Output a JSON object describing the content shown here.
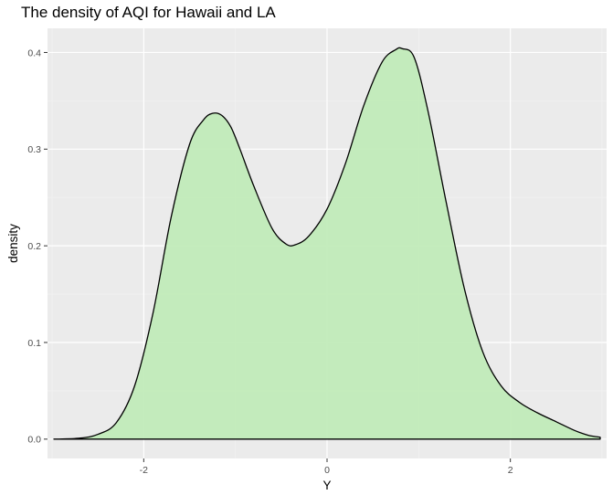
{
  "chart_data": {
    "type": "area",
    "title": "The density of AQI for Hawaii and LA",
    "xlabel": "Y",
    "ylabel": "density",
    "xlim": [
      -3.05,
      3.05
    ],
    "ylim": [
      -0.02,
      0.425
    ],
    "x_ticks": [
      -2,
      0,
      2
    ],
    "x_tick_labels": [
      "-2",
      "0",
      "2"
    ],
    "y_ticks": [
      0.0,
      0.1,
      0.2,
      0.3,
      0.4
    ],
    "y_tick_labels": [
      "0.0",
      "0.1",
      "0.2",
      "0.3",
      "0.4"
    ],
    "grid": true,
    "legend": "none",
    "colors": {
      "fill": "#c1ebb9",
      "line": "#000000",
      "panel": "#ebebeb",
      "grid_major": "#ffffff",
      "grid_minor": "#f3f3f3"
    },
    "series": [
      {
        "x": [
          -2.98,
          -2.7,
          -2.5,
          -2.3,
          -2.1,
          -1.9,
          -1.7,
          -1.5,
          -1.35,
          -1.25,
          -1.15,
          -1.05,
          -0.95,
          -0.8,
          -0.6,
          -0.45,
          -0.35,
          -0.2,
          0.0,
          0.2,
          0.4,
          0.6,
          0.75,
          0.82,
          0.95,
          1.1,
          1.3,
          1.5,
          1.7,
          1.9,
          2.1,
          2.3,
          2.5,
          2.7,
          2.85,
          2.98
        ],
        "y": [
          0.0,
          0.001,
          0.005,
          0.017,
          0.055,
          0.13,
          0.23,
          0.305,
          0.33,
          0.337,
          0.335,
          0.323,
          0.3,
          0.262,
          0.218,
          0.202,
          0.201,
          0.21,
          0.238,
          0.285,
          0.345,
          0.39,
          0.403,
          0.404,
          0.395,
          0.34,
          0.245,
          0.155,
          0.09,
          0.055,
          0.038,
          0.027,
          0.018,
          0.009,
          0.004,
          0.002
        ]
      }
    ]
  }
}
